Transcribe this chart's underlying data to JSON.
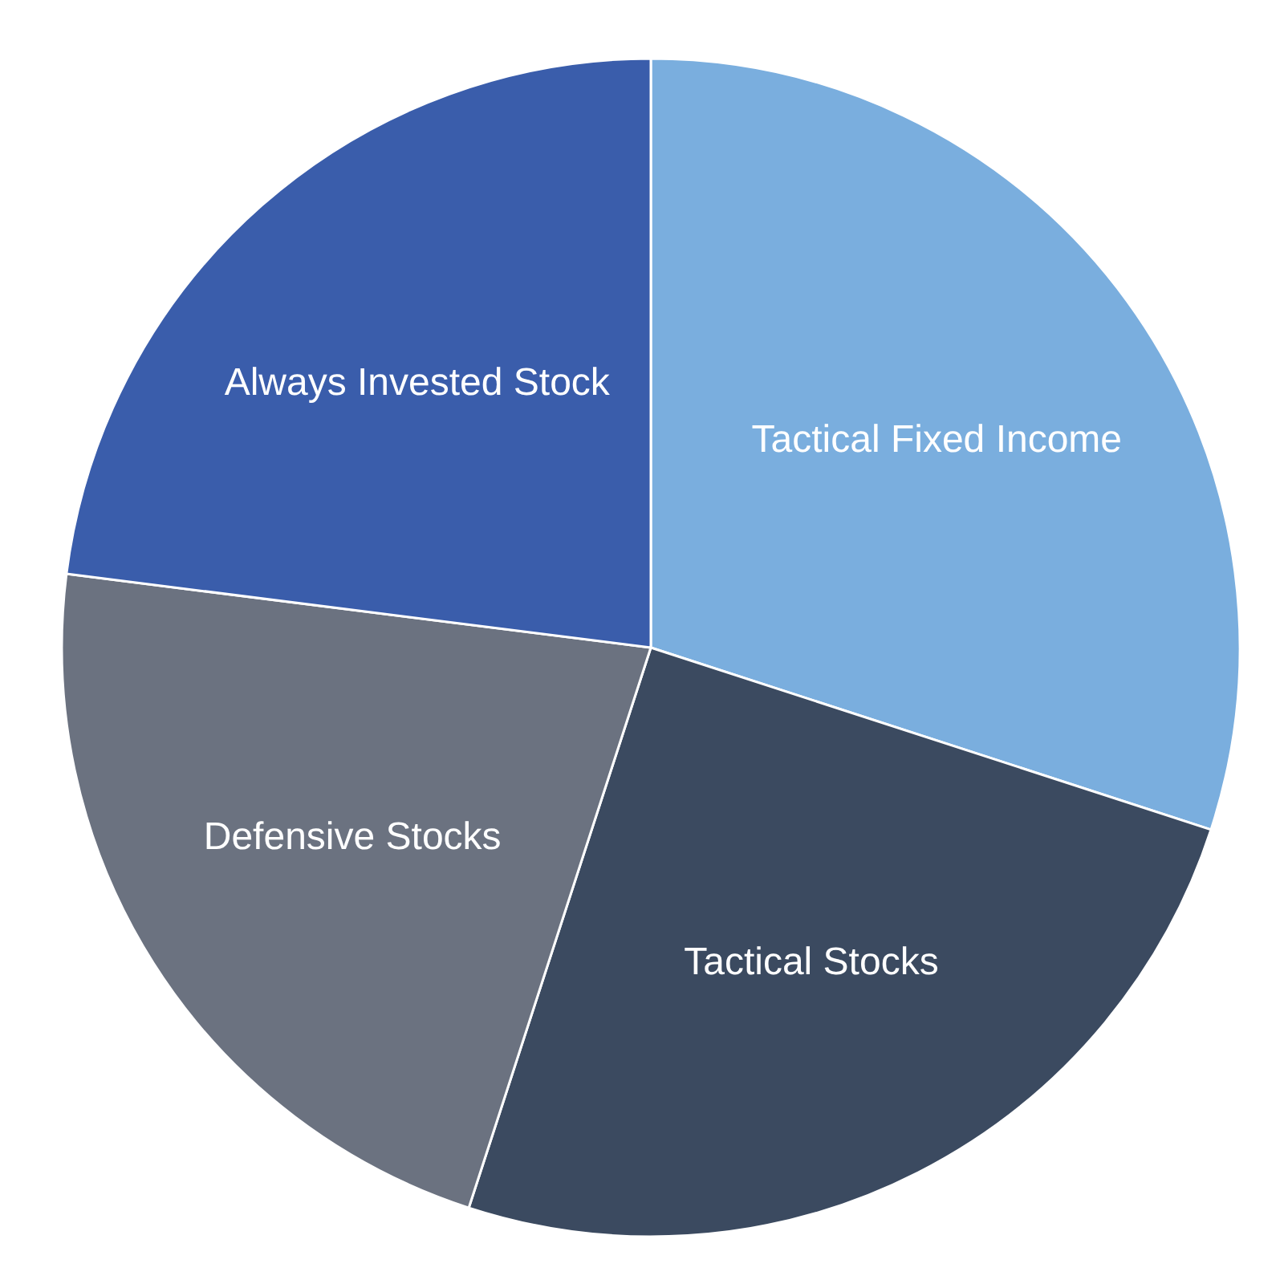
{
  "chart_data": {
    "type": "pie",
    "categories": [
      "Tactical Fixed Income",
      "Tactical Stocks",
      "Defensive Stocks",
      "Always Invested Stock"
    ],
    "values": [
      30,
      25,
      22,
      23
    ],
    "colors": [
      "#7aaede",
      "#3b4a60",
      "#6b7280",
      "#3a5dab"
    ]
  }
}
